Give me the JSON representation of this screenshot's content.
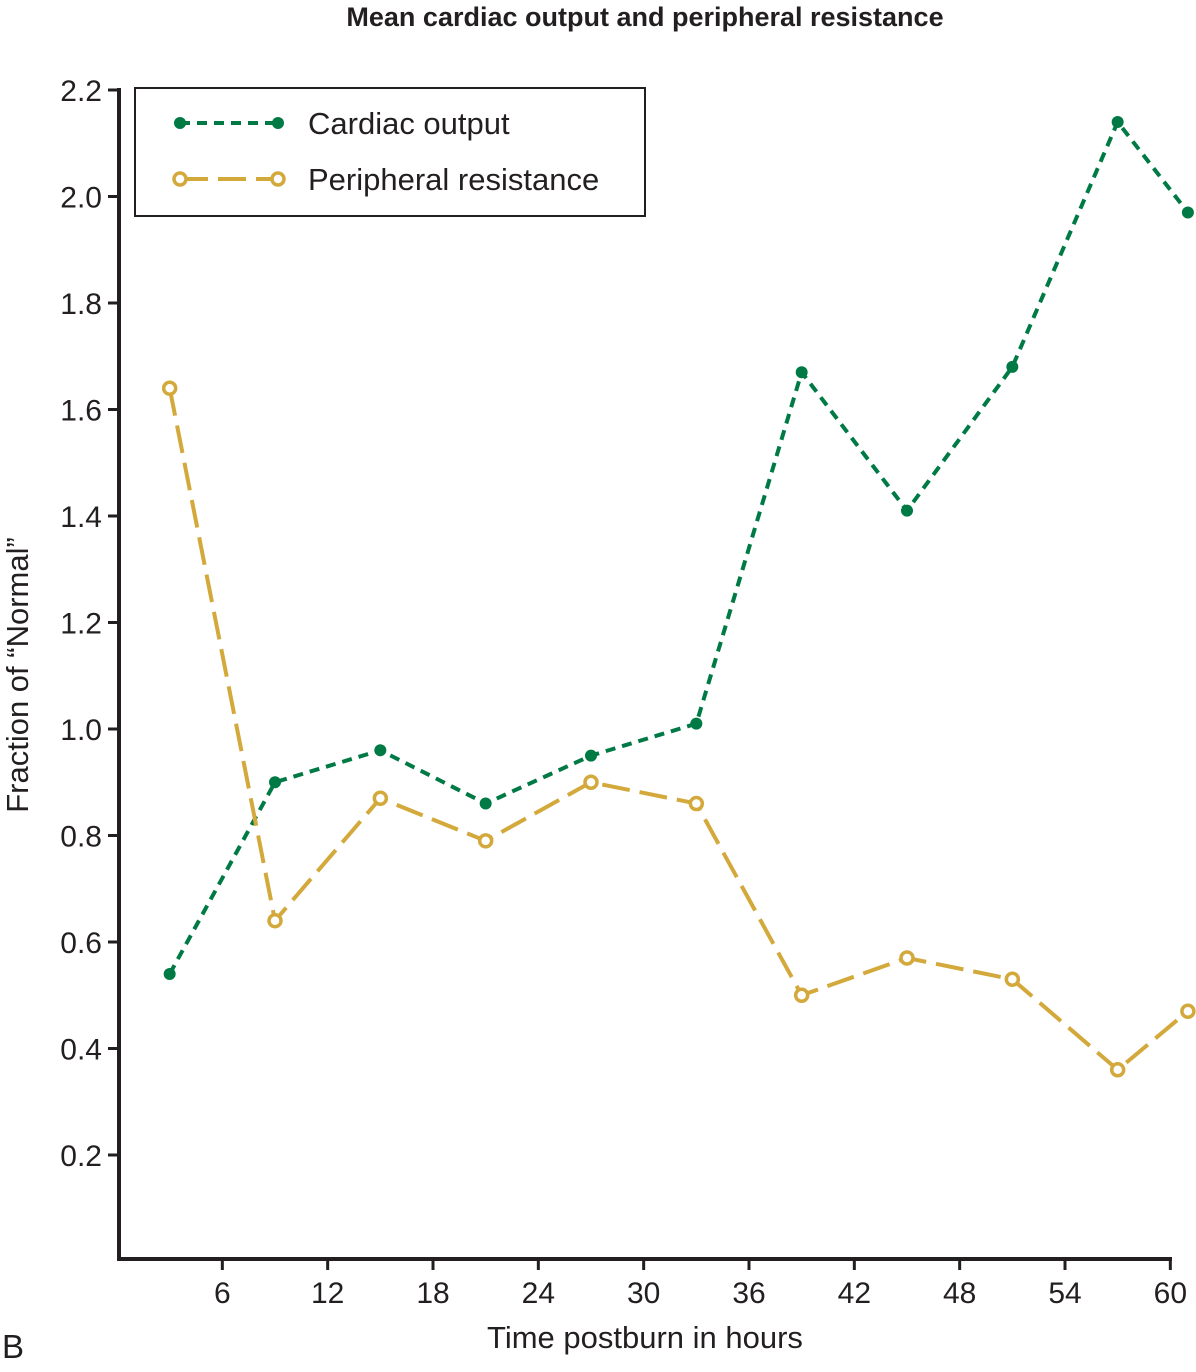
{
  "chart_data": {
    "type": "line",
    "title": "Mean cardiac output and peripheral resistance",
    "xlabel": "Time postburn in hours",
    "ylabel": "Fraction of “Normal”",
    "panel_label": "B",
    "xlim": [
      0,
      61
    ],
    "ylim": [
      0,
      2.2
    ],
    "x_ticks": [
      "6",
      "12",
      "18",
      "24",
      "30",
      "36",
      "42",
      "48",
      "54",
      "60"
    ],
    "y_ticks": [
      "0.2",
      "0.4",
      "0.6",
      "0.8",
      "1.0",
      "1.2",
      "1.4",
      "1.6",
      "1.8",
      "2.0",
      "2.2"
    ],
    "grid": false,
    "legend_position": "top-left",
    "x": [
      3,
      9,
      15,
      21,
      27,
      33,
      39,
      45,
      51,
      57,
      61
    ],
    "series": [
      {
        "name": "Cardiac output",
        "color": "#007a45",
        "style": "short-dash, filled dots",
        "values": [
          0.54,
          0.9,
          0.96,
          0.86,
          0.95,
          1.01,
          1.67,
          1.41,
          1.68,
          2.14,
          1.97
        ]
      },
      {
        "name": "Peripheral resistance",
        "color": "#d4a93c",
        "style": "long-dash, open circles",
        "values": [
          1.64,
          0.64,
          0.87,
          0.79,
          0.9,
          0.86,
          0.5,
          0.57,
          0.53,
          0.36,
          0.47
        ]
      }
    ]
  }
}
